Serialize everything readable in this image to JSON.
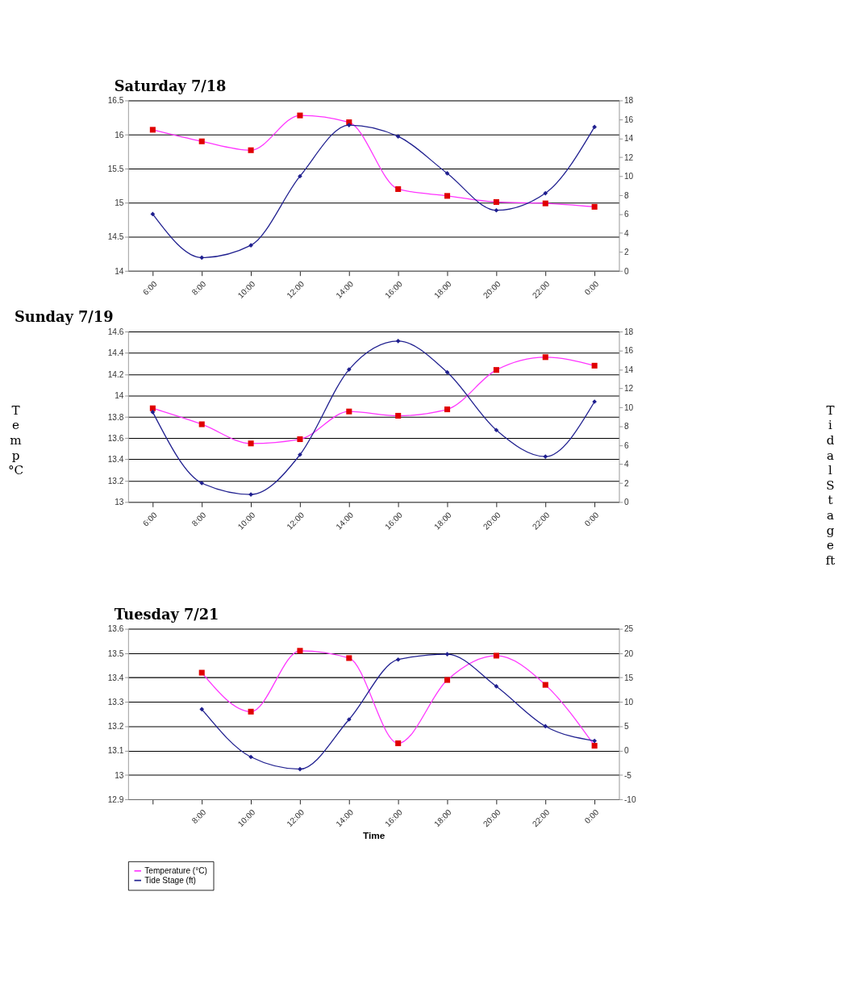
{
  "chart_data": [
    {
      "type": "line",
      "title": "Saturday 7/18",
      "categories": [
        "6:00",
        "8:00",
        "10:00",
        "12:00",
        "14:00",
        "16:00",
        "18:00",
        "20:00",
        "22:00",
        "0:00"
      ],
      "series": [
        {
          "name": "Temperature (°C)",
          "color": "#ff33ff",
          "marker": "square",
          "colors": [
            "#e00000",
            "#e00000",
            "#e00000",
            "#e00000",
            "#e00000",
            "#e00000",
            "#e00000",
            "#e00000",
            "#e00000",
            "#e00000"
          ],
          "values": [
            16.07,
            15.9,
            15.77,
            16.28,
            16.18,
            15.2,
            15.1,
            15.01,
            14.99,
            14.94
          ]
        },
        {
          "name": "Tide Stage (ft)",
          "color": "#1f1f8f",
          "marker": "diamond",
          "axis": "y2",
          "values": [
            6.0,
            1.4,
            2.7,
            10.0,
            15.4,
            14.2,
            10.3,
            6.4,
            8.2,
            15.2
          ]
        }
      ],
      "ylim": [
        14,
        16.5
      ],
      "yticks": [
        14,
        14.5,
        15,
        15.5,
        16,
        16.5
      ],
      "y2lim": [
        0,
        18
      ],
      "y2ticks": [
        0,
        2,
        4,
        6,
        8,
        10,
        12,
        14,
        16,
        18
      ],
      "grid": "y",
      "legend": "bottom",
      "line_style": "solid"
    },
    {
      "type": "line",
      "title": "Sunday 7/19",
      "ylabel": "Temp °C",
      "y2label": "Tidal Stage ft",
      "categories": [
        "6:00",
        "8:00",
        "10:00",
        "12:00",
        "14:00",
        "16:00",
        "18:00",
        "20:00",
        "22:00",
        "0:00"
      ],
      "series": [
        {
          "name": "Temperature (°C)",
          "color": "#ff33ff",
          "marker": "square",
          "colors": [
            "#e00000",
            "#e00000",
            "#e00000",
            "#e00000",
            "#e00000",
            "#e00000",
            "#e00000",
            "#e00000",
            "#e00000",
            "#e00000"
          ],
          "values": [
            13.88,
            13.73,
            13.55,
            13.59,
            13.85,
            13.81,
            13.87,
            14.24,
            14.36,
            14.28
          ]
        },
        {
          "name": "Tide Stage (ft)",
          "color": "#1f1f8f",
          "marker": "diamond",
          "axis": "y2",
          "values": [
            9.5,
            2.0,
            0.8,
            5.0,
            14.0,
            17.0,
            13.7,
            7.6,
            4.8,
            10.6
          ]
        }
      ],
      "ylim": [
        13,
        14.6
      ],
      "yticks": [
        13,
        13.2,
        13.4,
        13.6,
        13.8,
        14,
        14.2,
        14.4,
        14.6
      ],
      "y2lim": [
        0,
        18
      ],
      "y2ticks": [
        0,
        2,
        4,
        6,
        8,
        10,
        12,
        14,
        16,
        18
      ],
      "grid": "y",
      "legend": "bottom",
      "line_style": "solid"
    },
    {
      "type": "line",
      "title": "Tuesday 7/21",
      "xlabel": "Time",
      "categories": [
        null,
        "8:00",
        "10:00",
        "12:00",
        "14:00",
        "16:00",
        "18:00",
        "20:00",
        "22:00",
        "0:00"
      ],
      "series": [
        {
          "name": "Temperature (°C)",
          "color": "#ff33ff",
          "marker": "square",
          "colors": [
            null,
            "#e00000",
            "#e00000",
            "#e00000",
            "#e00000",
            "#e00000",
            "#e00000",
            "#e00000",
            "#e00000",
            "#e00000"
          ],
          "values": [
            null,
            13.42,
            13.26,
            13.51,
            13.48,
            13.13,
            13.39,
            13.49,
            13.37,
            13.12
          ]
        },
        {
          "name": "Tide Stage (ft)",
          "color": "#1f1f8f",
          "marker": "diamond",
          "axis": "y2",
          "values": [
            null,
            8.5,
            -1.3,
            -3.8,
            6.4,
            18.7,
            19.8,
            13.2,
            5.0,
            2.0
          ]
        }
      ],
      "ylim": [
        12.9,
        13.6
      ],
      "yticks": [
        12.9,
        13,
        13.1,
        13.2,
        13.3,
        13.4,
        13.5,
        13.6
      ],
      "y2lim": [
        -10,
        25
      ],
      "y2ticks": [
        -10,
        -5,
        0,
        5,
        10,
        15,
        20,
        25
      ],
      "grid": "y",
      "legend": "bottom",
      "line_style": "solid"
    }
  ]
}
